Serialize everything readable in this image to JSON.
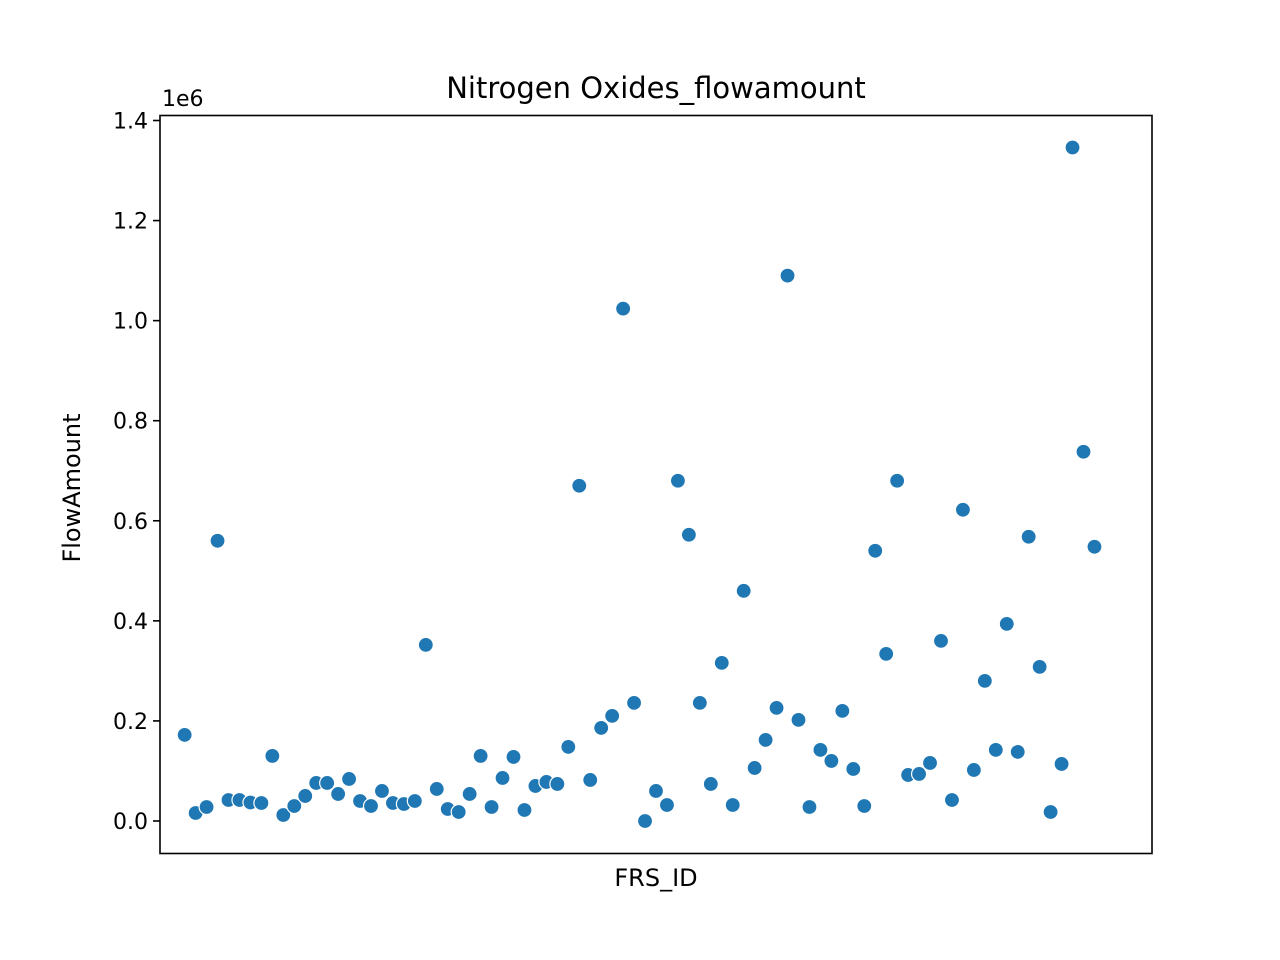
{
  "chart_data": {
    "type": "scatter",
    "title": "Nitrogen Oxides_flowamount",
    "xlabel": "FRS_ID",
    "ylabel": "FlowAmount",
    "y_offset_label": "1e6",
    "y_scale": 1000000,
    "ylim": [
      -0.065,
      1.41
    ],
    "xlim": [
      -2.25,
      88.25
    ],
    "y_ticks": [
      {
        "value": 0.0,
        "label": "0.0"
      },
      {
        "value": 0.2,
        "label": "0.2"
      },
      {
        "value": 0.4,
        "label": "0.4"
      },
      {
        "value": 0.6,
        "label": "0.6"
      },
      {
        "value": 0.8,
        "label": "0.8"
      },
      {
        "value": 1.0,
        "label": "1.0"
      },
      {
        "value": 1.2,
        "label": "1.2"
      },
      {
        "value": 1.4,
        "label": "1.4"
      }
    ],
    "grid": false,
    "marker_color": "#1f77b4",
    "values": [
      0.172,
      0.016,
      0.028,
      0.56,
      0.042,
      0.042,
      0.037,
      0.036,
      0.13,
      0.012,
      0.03,
      0.05,
      0.076,
      0.076,
      0.054,
      0.084,
      0.04,
      0.03,
      0.06,
      0.036,
      0.034,
      0.04,
      0.352,
      0.064,
      0.024,
      0.018,
      0.054,
      0.13,
      0.028,
      0.086,
      0.128,
      0.022,
      0.07,
      0.078,
      0.074,
      0.148,
      0.67,
      0.082,
      0.186,
      0.21,
      1.024,
      0.236,
      0.0,
      0.06,
      0.032,
      0.68,
      0.572,
      0.236,
      0.074,
      0.316,
      0.032,
      0.46,
      0.106,
      0.162,
      0.226,
      1.09,
      0.202,
      0.028,
      0.142,
      0.12,
      0.22,
      0.104,
      0.03,
      0.54,
      0.334,
      0.68,
      0.092,
      0.094,
      0.116,
      0.36,
      0.042,
      0.622,
      0.102,
      0.28,
      0.142,
      0.394,
      0.138,
      0.568,
      0.308,
      0.018,
      0.114,
      1.346,
      0.738,
      0.548
    ]
  }
}
